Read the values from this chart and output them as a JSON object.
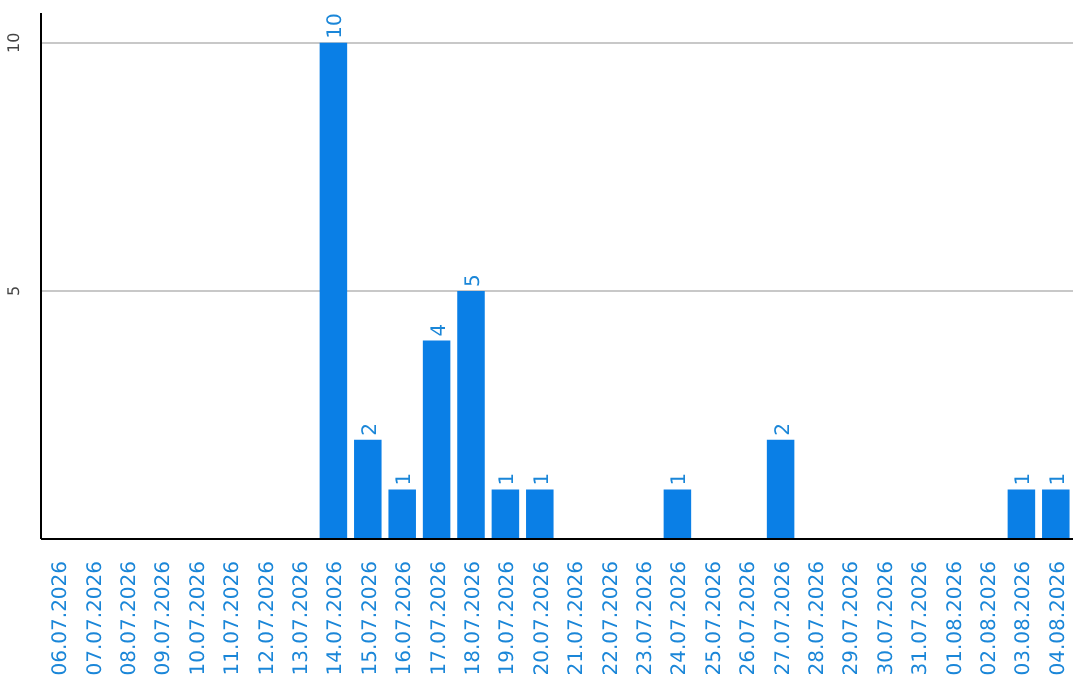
{
  "chart_data": {
    "type": "bar",
    "categories": [
      "06.07.2026",
      "07.07.2026",
      "08.07.2026",
      "09.07.2026",
      "10.07.2026",
      "11.07.2026",
      "12.07.2026",
      "13.07.2026",
      "14.07.2026",
      "15.07.2026",
      "16.07.2026",
      "17.07.2026",
      "18.07.2026",
      "19.07.2026",
      "20.07.2026",
      "21.07.2026",
      "22.07.2026",
      "23.07.2026",
      "24.07.2026",
      "25.07.2026",
      "26.07.2026",
      "27.07.2026",
      "28.07.2026",
      "29.07.2026",
      "30.07.2026",
      "31.07.2026",
      "01.08.2026",
      "02.08.2026",
      "03.08.2026",
      "04.08.2026"
    ],
    "values": [
      0,
      0,
      0,
      0,
      0,
      0,
      0,
      0,
      10,
      2,
      1,
      4,
      5,
      1,
      1,
      0,
      0,
      0,
      1,
      0,
      0,
      2,
      0,
      0,
      0,
      0,
      0,
      0,
      1,
      1
    ],
    "value_labels": [
      null,
      null,
      null,
      null,
      null,
      null,
      null,
      null,
      "10",
      "2",
      "1",
      "4",
      "5",
      "1",
      "1",
      null,
      null,
      null,
      "1",
      null,
      null,
      "2",
      null,
      null,
      null,
      null,
      null,
      null,
      "1",
      "1"
    ],
    "color": "#0a7fe6",
    "ylim": [
      0,
      10.6
    ],
    "yticks": [
      5,
      10
    ],
    "grid": "y"
  }
}
